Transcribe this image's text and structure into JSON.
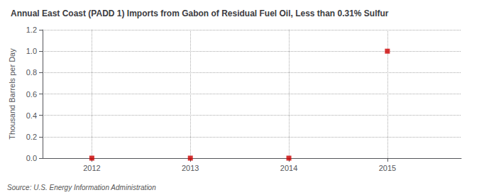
{
  "chart_data": {
    "type": "scatter",
    "title": "Annual East Coast (PADD 1) Imports from Gabon of Residual Fuel Oil, Less than 0.31% Sulfur",
    "ylabel": "Thousand Barrels per Day",
    "annotations": [
      "Source: U.S. Energy Information Administration"
    ],
    "x": [
      2012,
      2013,
      2014,
      2015
    ],
    "values": [
      0.0,
      0.0,
      0.0,
      1.0
    ],
    "color": "#cc0000",
    "marker": "square",
    "xlim": [
      2011.5,
      2015.75
    ],
    "xticks": [
      2012,
      2013,
      2014,
      2015
    ],
    "ylim": [
      0.0,
      1.2
    ],
    "yticks": [
      {
        "value": 0,
        "label": "0.0"
      },
      0.2,
      0.4,
      0.6,
      0.8,
      {
        "value": 1,
        "label": "1.0"
      },
      1.2
    ],
    "grid": true
  }
}
